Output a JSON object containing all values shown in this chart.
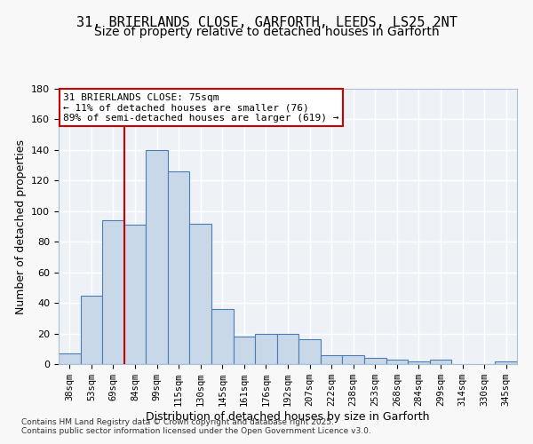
{
  "title_line1": "31, BRIERLANDS CLOSE, GARFORTH, LEEDS, LS25 2NT",
  "title_line2": "Size of property relative to detached houses in Garforth",
  "xlabel": "Distribution of detached houses by size in Garforth",
  "ylabel": "Number of detached properties",
  "bar_color": "#c8d8e8",
  "bar_edge_color": "#4a7db5",
  "categories": [
    "38sqm",
    "53sqm",
    "69sqm",
    "84sqm",
    "99sqm",
    "115sqm",
    "130sqm",
    "145sqm",
    "161sqm",
    "176sqm",
    "192sqm",
    "207sqm",
    "222sqm",
    "238sqm",
    "253sqm",
    "268sqm",
    "284sqm",
    "299sqm",
    "314sqm",
    "330sqm",
    "345sqm"
  ],
  "values": [
    7,
    45,
    94,
    91,
    140,
    126,
    92,
    36,
    18,
    20,
    20,
    16,
    6,
    6,
    4,
    3,
    2,
    3,
    0,
    0,
    2
  ],
  "ylim": [
    0,
    180
  ],
  "yticks": [
    0,
    20,
    40,
    60,
    80,
    100,
    120,
    140,
    160,
    180
  ],
  "vline_color": "#cc0000",
  "annotation_text": "31 BRIERLANDS CLOSE: 75sqm\n← 11% of detached houses are smaller (76)\n89% of semi-detached houses are larger (619) →",
  "footer_text": "Contains HM Land Registry data © Crown copyright and database right 2025.\nContains public sector information licensed under the Open Government Licence v3.0.",
  "bg_color": "#eef2f7",
  "grid_color": "#ffffff",
  "fig_bg_color": "#f8f8f8",
  "title_fontsize": 11,
  "subtitle_fontsize": 10,
  "axis_label_fontsize": 9,
  "tick_fontsize": 7.5,
  "annotation_fontsize": 8
}
